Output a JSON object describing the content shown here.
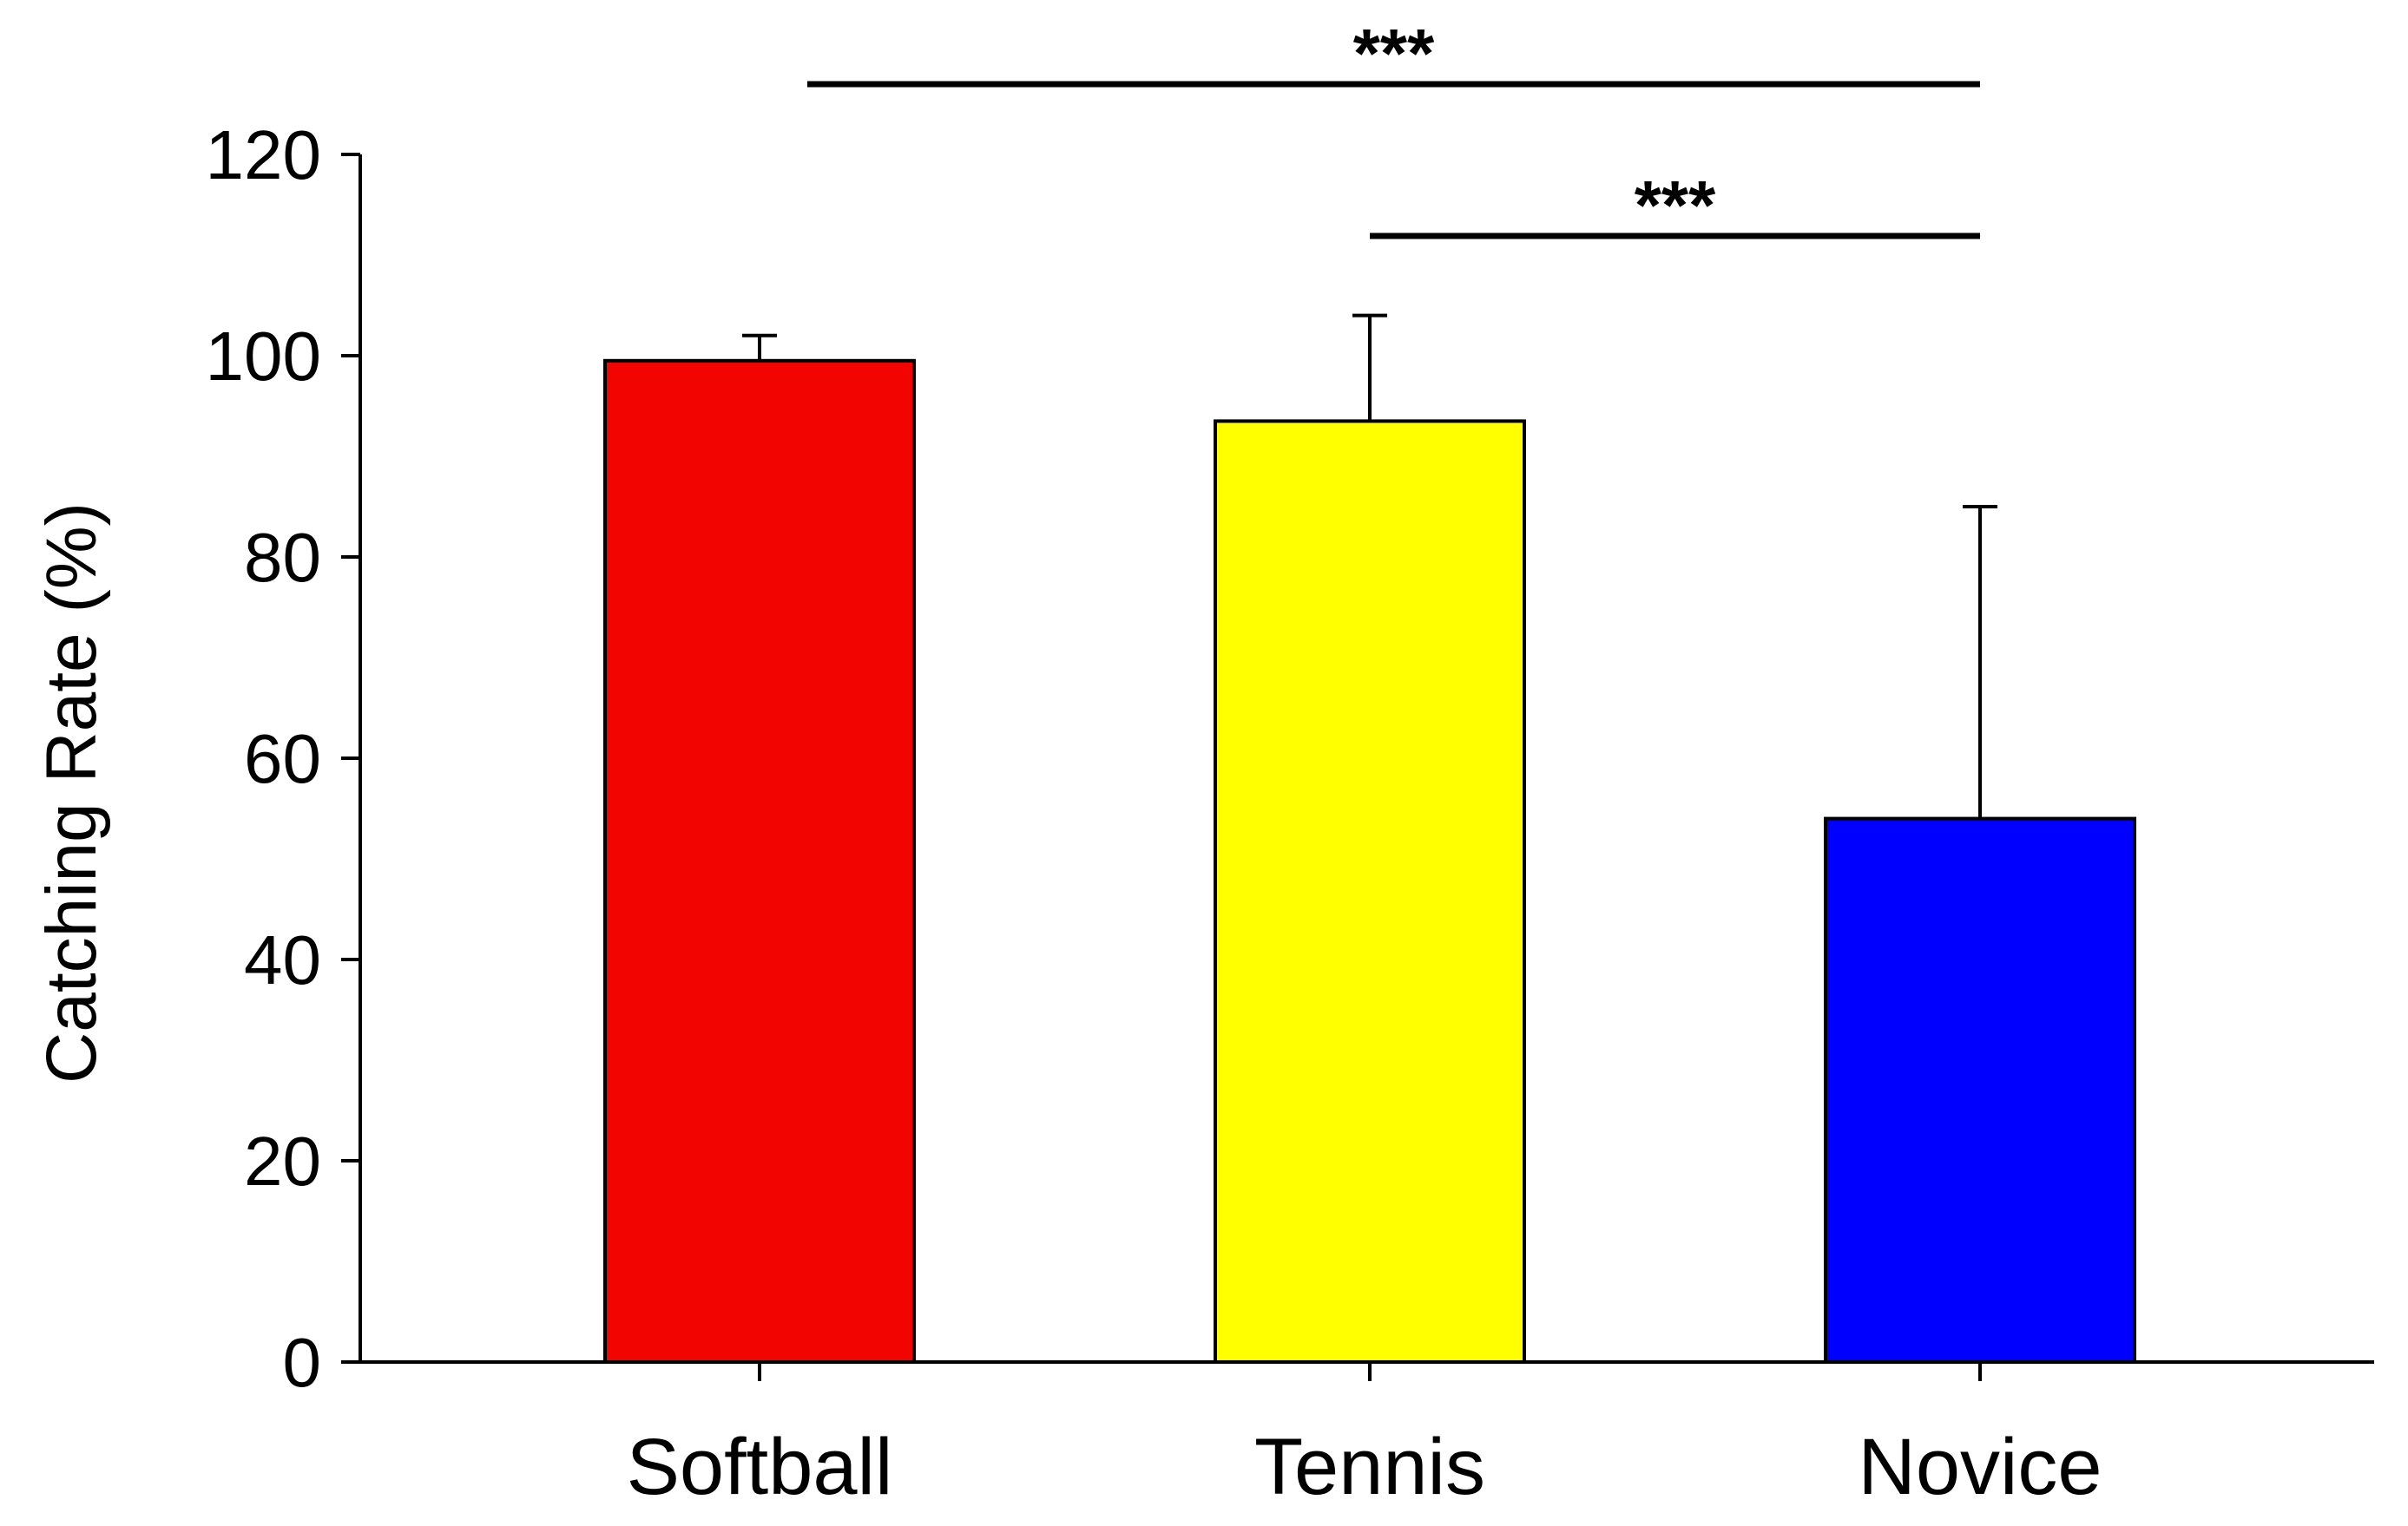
{
  "chart_data": {
    "type": "bar",
    "categories": [
      "Softball",
      "Tennis",
      "Novice"
    ],
    "values": [
      99.5,
      93.5,
      54
    ],
    "errors": [
      2.5,
      10.5,
      31
    ],
    "colors": [
      "#f20500",
      "#ffff00",
      "#0000ff"
    ],
    "ylabel": "Catching Rate (%)",
    "xlabel": "",
    "ylim": [
      0,
      120
    ],
    "yticks": [
      0,
      20,
      40,
      60,
      80,
      100,
      120
    ],
    "grid": false,
    "legend": "none",
    "significance": [
      {
        "from": "Softball",
        "to": "Novice",
        "label": "***"
      },
      {
        "from": "Tennis",
        "to": "Novice",
        "label": "***"
      }
    ]
  }
}
